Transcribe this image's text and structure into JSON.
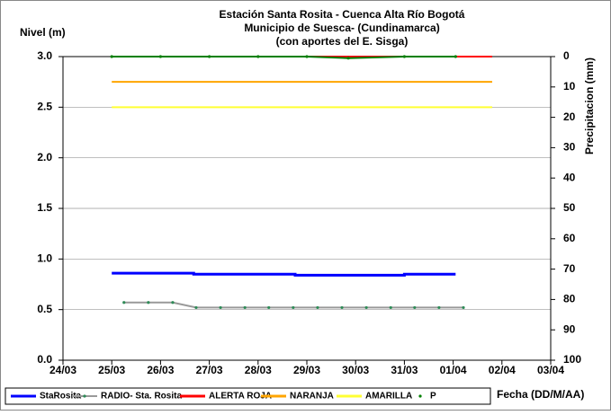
{
  "chart_data": {
    "type": "line",
    "title": [
      "Estación Santa Rosita - Cuenca Alta Río Bogotá",
      "Municipio de Suesca- (Cundinamarca)",
      "(con aportes del  E. Sisga)"
    ],
    "y_label": "Nivel (m)",
    "y2_label": "Precipitacion (mm)",
    "x_label": "Fecha (DD/M/AA)",
    "xlim": [
      0,
      10
    ],
    "xticks": [
      {
        "value": 0,
        "label": "24/03"
      },
      {
        "value": 1,
        "label": "25/03"
      },
      {
        "value": 2,
        "label": "26/03"
      },
      {
        "value": 3,
        "label": "27/03"
      },
      {
        "value": 4,
        "label": "28/03"
      },
      {
        "value": 5,
        "label": "29/03"
      },
      {
        "value": 6,
        "label": "30/03"
      },
      {
        "value": 7,
        "label": "31/03"
      },
      {
        "value": 8,
        "label": "01/04"
      },
      {
        "value": 9,
        "label": "02/04"
      },
      {
        "value": 10,
        "label": "03/04"
      }
    ],
    "ylim": [
      0,
      3
    ],
    "yticks": [
      {
        "value": 0,
        "label": "0.0"
      },
      0.5,
      {
        "value": 1,
        "label": "1.0"
      },
      1.5,
      {
        "value": 2,
        "label": "2.0"
      },
      2.5,
      {
        "value": 3,
        "label": "3.0"
      }
    ],
    "y2lim": [
      100,
      0
    ],
    "y2ticks": [
      0,
      10,
      20,
      30,
      40,
      50,
      60,
      70,
      80,
      90,
      100
    ],
    "grid": true,
    "series": [
      {
        "name": "StaRosita",
        "color": "#0000ff",
        "x": [
          1.0,
          2.68,
          2.68,
          4.76,
          4.76,
          7.0,
          7.0,
          8.05
        ],
        "values": [
          0.86,
          0.86,
          0.85,
          0.85,
          0.84,
          0.84,
          0.85,
          0.85
        ]
      },
      {
        "name": "RADIO- Sta. Rosita",
        "color": "#999999",
        "markers": true,
        "x": [
          1.25,
          1.75,
          2.25,
          2.73,
          3.23,
          3.73,
          4.22,
          4.72,
          5.22,
          5.72,
          6.22,
          6.72,
          7.21,
          7.71,
          8.21
        ],
        "values": [
          0.57,
          0.57,
          0.57,
          0.52,
          0.52,
          0.52,
          0.52,
          0.52,
          0.52,
          0.52,
          0.52,
          0.52,
          0.52,
          0.52,
          0.52
        ]
      },
      {
        "name": "ALERTA ROJA",
        "color": "#ff0000",
        "x": [
          1.0,
          8.8
        ],
        "values": [
          3.0,
          3.0
        ]
      },
      {
        "name": "NARANJA",
        "color": "#ffa500",
        "x": [
          1.0,
          8.8
        ],
        "values": [
          2.75,
          2.75
        ]
      },
      {
        "name": "AMARILLA",
        "color": "#ffff33",
        "x": [
          1.0,
          8.8
        ],
        "values": [
          2.5,
          2.5
        ]
      },
      {
        "name": "P",
        "color": "#008000",
        "axis": "y2",
        "markers": true,
        "x": [
          1.0,
          2.0,
          3.0,
          4.0,
          5.0,
          5.85,
          7.0,
          8.05
        ],
        "values": [
          0,
          0,
          0,
          0,
          0,
          0.5,
          0,
          0
        ]
      }
    ]
  }
}
